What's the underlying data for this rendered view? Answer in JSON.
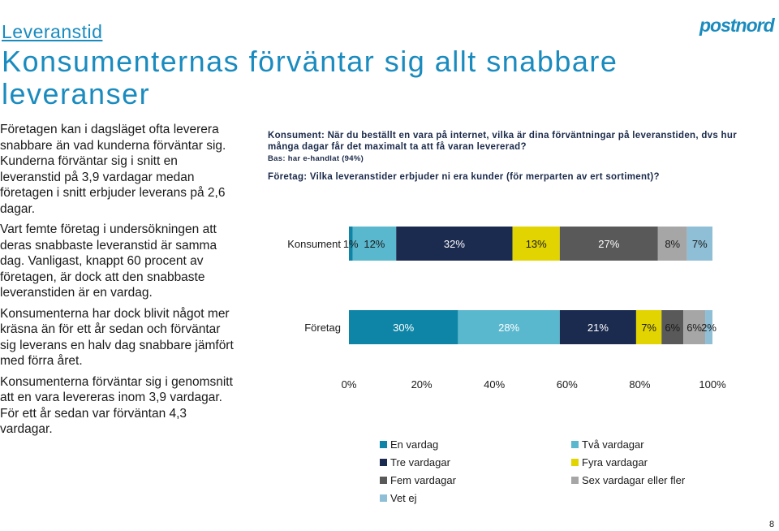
{
  "header": {
    "kicker": "Leveranstid",
    "title": "Konsumenternas förväntar sig allt snabbare leveranser",
    "logo_text": "postnord"
  },
  "body_paragraphs": [
    "Företagen kan i dagsläget ofta leverera snabbare än vad kunderna förväntar sig. Kunderna förväntar sig i snitt en leveranstid på 3,9 vardagar medan företagen i snitt erbjuder leverans på 2,6 dagar.",
    "Vart femte företag i undersökningen att deras snabbaste leveranstid är samma dag. Vanligast, knappt 60 procent av företagen, är dock att den snabbaste leveranstiden är en vardag.",
    "Konsumenterna har dock blivit något mer kräsna än för ett år sedan och förväntar sig leverans en halv dag snabbare jämfört med förra året.",
    "Konsumenterna förväntar sig i genomsnitt att en vara levereras inom 3,9 vardagar. För ett år sedan var förväntan 4,3 vardagar."
  ],
  "questions": {
    "consumer": "Konsument: När du beställt en vara på internet, vilka är dina förväntningar på leveranstiden, dvs hur många dagar får det maximalt ta att få varan levererad?",
    "base": "Bas: har e-handlat (94%)",
    "company": "Företag: Vilka leveranstider erbjuder ni era kunder (för merparten av ert sortiment)?"
  },
  "page_number": "8",
  "colors": {
    "accent": "#1a8bbf",
    "en_vardag": "#0e85a6",
    "tva_vardagar": "#5ab8ce",
    "tre_vardagar": "#1b2a4f",
    "fyra_vardagar": "#e2d400",
    "fem_vardagar": "#595959",
    "sex_vardagar": "#a6a6a6",
    "vet_ej": "#8fbfd6"
  },
  "chart_data": {
    "type": "bar",
    "orientation": "horizontal",
    "stacked": true,
    "percent_stacked": true,
    "categories": [
      "Konsument",
      "Företag"
    ],
    "series": [
      {
        "name": "En vardag",
        "color": "#0e85a6",
        "values": [
          1,
          30
        ],
        "labels": [
          "1%",
          "30%"
        ],
        "label_color": [
          "#1a1a1a",
          "#ffffff"
        ]
      },
      {
        "name": "Två vardagar",
        "color": "#5ab8ce",
        "values": [
          12,
          28
        ],
        "labels": [
          "12%",
          "28%"
        ],
        "label_color": [
          "#1a1a1a",
          "#ffffff"
        ]
      },
      {
        "name": "Tre vardagar",
        "color": "#1b2a4f",
        "values": [
          32,
          21
        ],
        "labels": [
          "32%",
          "21%"
        ],
        "label_color": [
          "#ffffff",
          "#ffffff"
        ]
      },
      {
        "name": "Fyra vardagar",
        "color": "#e2d400",
        "values": [
          13,
          7
        ],
        "labels": [
          "13%",
          "7%"
        ],
        "label_color": [
          "#1a1a1a",
          "#1a1a1a"
        ]
      },
      {
        "name": "Fem vardagar",
        "color": "#595959",
        "values": [
          27,
          6
        ],
        "labels": [
          "27%",
          "6%"
        ],
        "label_color": [
          "#ffffff",
          "#1a1a1a"
        ]
      },
      {
        "name": "Sex vardagar eller fler",
        "color": "#a6a6a6",
        "values": [
          8,
          6
        ],
        "labels": [
          "8%",
          "6%"
        ],
        "label_color": [
          "#1a1a1a",
          "#1a1a1a"
        ]
      },
      {
        "name": "Vet ej",
        "color": "#8fbfd6",
        "values": [
          7,
          2
        ],
        "labels": [
          "7%",
          "2%"
        ],
        "label_color": [
          "#1a1a1a",
          "#1a1a1a"
        ]
      }
    ],
    "xlim": [
      0,
      100
    ],
    "xticks": [
      "0%",
      "20%",
      "40%",
      "60%",
      "80%",
      "100%"
    ],
    "grid": false,
    "legend_position": "bottom"
  }
}
